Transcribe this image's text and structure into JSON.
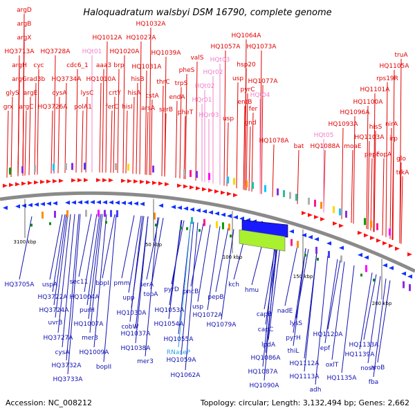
{
  "title": "Haloquadratum walsbyi DSM 16790, complete genome",
  "accession": "Accession: NC_008212",
  "topology": "Topology: circular; Length: 3,132,494 bp; Genes: 2,662",
  "colors": {
    "forward_label": "#e00000",
    "reverse_label": "#1010b0",
    "rna_label": "#f080c8",
    "special_label": "#30a0e0",
    "forward_gene": "#ff1010",
    "reverse_gene": "#1030ff",
    "backbone": "#8a8a8a",
    "tick_mark": "#0a8a0a"
  },
  "ticks": [
    {
      "label": "3100 kbp"
    },
    {
      "label": "50 kbp"
    },
    {
      "label": "100 kbp"
    },
    {
      "label": "150 kbp"
    },
    {
      "label": "200 kbp"
    }
  ],
  "top_labels": [
    {
      "text": "argD",
      "kind": "fwd"
    },
    {
      "text": "argB",
      "kind": "fwd"
    },
    {
      "text": "argX",
      "kind": "fwd"
    },
    {
      "text": "HQ3713A",
      "kind": "fwd"
    },
    {
      "text": "argH",
      "kind": "fwd"
    },
    {
      "text": "argG",
      "kind": "fwd"
    },
    {
      "text": "glyS",
      "kind": "fwd"
    },
    {
      "text": "grx",
      "kind": "fwd"
    },
    {
      "text": "argC",
      "kind": "fwd"
    },
    {
      "text": "argE",
      "kind": "fwd"
    },
    {
      "text": "rad3b",
      "kind": "fwd"
    },
    {
      "text": "cyc",
      "kind": "fwd"
    },
    {
      "text": "HQ3728A",
      "kind": "fwd"
    },
    {
      "text": "HQ3726A",
      "kind": "fwd"
    },
    {
      "text": "cysA",
      "kind": "fwd"
    },
    {
      "text": "HQ3734A",
      "kind": "fwd"
    },
    {
      "text": "cdc6_1",
      "kind": "fwd"
    },
    {
      "text": "polA1",
      "kind": "fwd"
    },
    {
      "text": "lysC",
      "kind": "fwd"
    },
    {
      "text": "HQ1010A",
      "kind": "fwd"
    },
    {
      "text": "aaa3",
      "kind": "fwd"
    },
    {
      "text": "brp",
      "kind": "fwd"
    },
    {
      "text": "HQt01",
      "kind": "rna"
    },
    {
      "text": "HQ1012A",
      "kind": "fwd"
    },
    {
      "text": "HQ1020A",
      "kind": "fwd"
    },
    {
      "text": "crtY",
      "kind": "fwd"
    },
    {
      "text": "ferC",
      "kind": "fwd"
    },
    {
      "text": "hisI",
      "kind": "fwd"
    },
    {
      "text": "hisA",
      "kind": "fwd"
    },
    {
      "text": "hisB",
      "kind": "fwd"
    },
    {
      "text": "HQ1027A",
      "kind": "fwd"
    },
    {
      "text": "HQ1032A",
      "kind": "fwd"
    },
    {
      "text": "HQ1031A",
      "kind": "fwd"
    },
    {
      "text": "HQ1039A",
      "kind": "fwd"
    },
    {
      "text": "cstA",
      "kind": "fwd"
    },
    {
      "text": "arsA",
      "kind": "fwd"
    },
    {
      "text": "thrC",
      "kind": "fwd"
    },
    {
      "text": "serB",
      "kind": "fwd"
    },
    {
      "text": "endA",
      "kind": "fwd"
    },
    {
      "text": "trpS",
      "kind": "fwd"
    },
    {
      "text": "pheS",
      "kind": "fwd"
    },
    {
      "text": "pheT",
      "kind": "fwd"
    },
    {
      "text": "valS",
      "kind": "fwd"
    },
    {
      "text": "HQr02",
      "kind": "rna"
    },
    {
      "text": "HQt03",
      "kind": "rna"
    },
    {
      "text": "HQt02",
      "kind": "rna"
    },
    {
      "text": "HQr01",
      "kind": "rna"
    },
    {
      "text": "HQr03",
      "kind": "rna"
    },
    {
      "text": "HQ1057A",
      "kind": "fwd"
    },
    {
      "text": "HQ1064A",
      "kind": "fwd"
    },
    {
      "text": "HQ1073A",
      "kind": "fwd"
    },
    {
      "text": "hsp20",
      "kind": "fwd"
    },
    {
      "text": "usp",
      "kind": "fwd"
    },
    {
      "text": "pyrC",
      "kind": "fwd"
    },
    {
      "text": "entB",
      "kind": "fwd"
    },
    {
      "text": "usp",
      "kind": "fwd"
    },
    {
      "text": "HQ1077A",
      "kind": "fwd"
    },
    {
      "text": "HQt04",
      "kind": "rna"
    },
    {
      "text": "fer",
      "kind": "fwd"
    },
    {
      "text": "gnd",
      "kind": "fwd"
    },
    {
      "text": "HQ1078A",
      "kind": "fwd"
    },
    {
      "text": "bat",
      "kind": "fwd"
    },
    {
      "text": "HQ1088A",
      "kind": "fwd"
    },
    {
      "text": "HQt05",
      "kind": "rna"
    },
    {
      "text": "moaE",
      "kind": "fwd"
    },
    {
      "text": "HQ1093A",
      "kind": "fwd"
    },
    {
      "text": "HQ1096A",
      "kind": "fwd"
    },
    {
      "text": "HQ1100A",
      "kind": "fwd"
    },
    {
      "text": "HQ1101A",
      "kind": "fwd"
    },
    {
      "text": "HQ1103A",
      "kind": "fwd"
    },
    {
      "text": "pepF",
      "kind": "fwd"
    },
    {
      "text": "hisS",
      "kind": "fwd"
    },
    {
      "text": "copA",
      "kind": "fwd"
    },
    {
      "text": "nirA",
      "kind": "fwd"
    },
    {
      "text": "irp",
      "kind": "fwd"
    },
    {
      "text": "rps19R",
      "kind": "fwd"
    },
    {
      "text": "HQ1105A",
      "kind": "fwd"
    },
    {
      "text": "truA",
      "kind": "fwd"
    },
    {
      "text": "glo",
      "kind": "fwd"
    },
    {
      "text": "trkA",
      "kind": "fwd"
    }
  ],
  "bottom_labels": [
    {
      "text": "HQ3705A",
      "kind": "rev"
    },
    {
      "text": "uspA",
      "kind": "rev"
    },
    {
      "text": "HQ3722A",
      "kind": "rev"
    },
    {
      "text": "HQ3724A",
      "kind": "rev"
    },
    {
      "text": "uvrB",
      "kind": "rev"
    },
    {
      "text": "HQ3727A",
      "kind": "rev"
    },
    {
      "text": "cysA",
      "kind": "rev"
    },
    {
      "text": "HQ3732A",
      "kind": "rev"
    },
    {
      "text": "HQ3733A",
      "kind": "rev"
    },
    {
      "text": "sec11",
      "kind": "rev"
    },
    {
      "text": "HQ1004A",
      "kind": "rev"
    },
    {
      "text": "purH",
      "kind": "rev"
    },
    {
      "text": "HQ1007A",
      "kind": "rev"
    },
    {
      "text": "mer3",
      "kind": "rev"
    },
    {
      "text": "HQ1009A",
      "kind": "rev"
    },
    {
      "text": "bopI",
      "kind": "rev"
    },
    {
      "text": "bopII",
      "kind": "rev"
    },
    {
      "text": "pmm",
      "kind": "rev"
    },
    {
      "text": "upp",
      "kind": "rev"
    },
    {
      "text": "HQ1030A",
      "kind": "rev"
    },
    {
      "text": "cobW",
      "kind": "rev"
    },
    {
      "text": "HQ1037A",
      "kind": "rev"
    },
    {
      "text": "HQ1038A",
      "kind": "rev"
    },
    {
      "text": "mer3",
      "kind": "rev"
    },
    {
      "text": "serA",
      "kind": "rev"
    },
    {
      "text": "topA",
      "kind": "rev"
    },
    {
      "text": "pyrD",
      "kind": "rev"
    },
    {
      "text": "HQ1053A",
      "kind": "rev"
    },
    {
      "text": "HQ1054A",
      "kind": "rev"
    },
    {
      "text": "HQ1055A",
      "kind": "rev"
    },
    {
      "text": "RNaseP",
      "kind": "special"
    },
    {
      "text": "HQ1059A",
      "kind": "rev"
    },
    {
      "text": "HQ1062A",
      "kind": "rev"
    },
    {
      "text": "pncB",
      "kind": "rev"
    },
    {
      "text": "usp",
      "kind": "rev"
    },
    {
      "text": "HQ1072A",
      "kind": "rev"
    },
    {
      "text": "pepB",
      "kind": "rev"
    },
    {
      "text": "HQ1079A",
      "kind": "rev"
    },
    {
      "text": "kch",
      "kind": "rev"
    },
    {
      "text": "hmu",
      "kind": "rev"
    },
    {
      "text": "capB",
      "kind": "rev"
    },
    {
      "text": "capC",
      "kind": "rev"
    },
    {
      "text": "lpdA",
      "kind": "rev"
    },
    {
      "text": "HQ1086A",
      "kind": "rev"
    },
    {
      "text": "HQ1087A",
      "kind": "rev"
    },
    {
      "text": "HQ1090A",
      "kind": "rev"
    },
    {
      "text": "nadE",
      "kind": "rev"
    },
    {
      "text": "lysS",
      "kind": "rev"
    },
    {
      "text": "pyrH",
      "kind": "rev"
    },
    {
      "text": "thiL",
      "kind": "rev"
    },
    {
      "text": "HQ1112A",
      "kind": "rev"
    },
    {
      "text": "HQ1113A",
      "kind": "rev"
    },
    {
      "text": "adh",
      "kind": "rev"
    },
    {
      "text": "HQ1120A",
      "kind": "rev"
    },
    {
      "text": "epf",
      "kind": "rev"
    },
    {
      "text": "oxlT",
      "kind": "rev"
    },
    {
      "text": "HQ1133A",
      "kind": "rev"
    },
    {
      "text": "HQ1139A",
      "kind": "rev"
    },
    {
      "text": "HQ1135A",
      "kind": "rev"
    },
    {
      "text": "nosY",
      "kind": "rev"
    },
    {
      "text": "aroB",
      "kind": "rev"
    },
    {
      "text": "fba",
      "kind": "rev"
    }
  ]
}
